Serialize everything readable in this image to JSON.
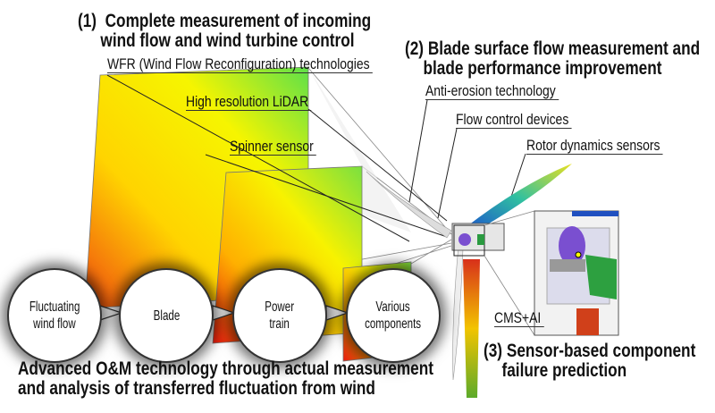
{
  "section1": {
    "number": "(1)",
    "line1": "Complete measurement of incoming",
    "line2": "wind flow and wind turbine control"
  },
  "section2": {
    "number": "(2)",
    "line1": "Blade surface flow measurement and",
    "line2": "blade performance improvement"
  },
  "section3": {
    "number": "(3)",
    "line1": "Sensor-based component",
    "line2": "failure prediction"
  },
  "labels": {
    "wfr": "WFR (Wind Flow Reconfiguration) technologies",
    "lidar": "High resolution LiDAR",
    "spinner": "Spinner sensor",
    "anti_erosion": "Anti-erosion technology",
    "flow_control": "Flow control devices",
    "rotor_dynamics": "Rotor dynamics sensors",
    "cms": "CMS+AI"
  },
  "chain": [
    {
      "line1": "Fluctuating",
      "line2": "wind flow"
    },
    {
      "line1": "Blade",
      "line2": ""
    },
    {
      "line1": "Power",
      "line2": "train"
    },
    {
      "line1": "Various",
      "line2": "components"
    }
  ],
  "footer": {
    "line1": "Advanced O&M technology through actual measurement",
    "line2": "and analysis of transferred fluctuation from wind"
  }
}
